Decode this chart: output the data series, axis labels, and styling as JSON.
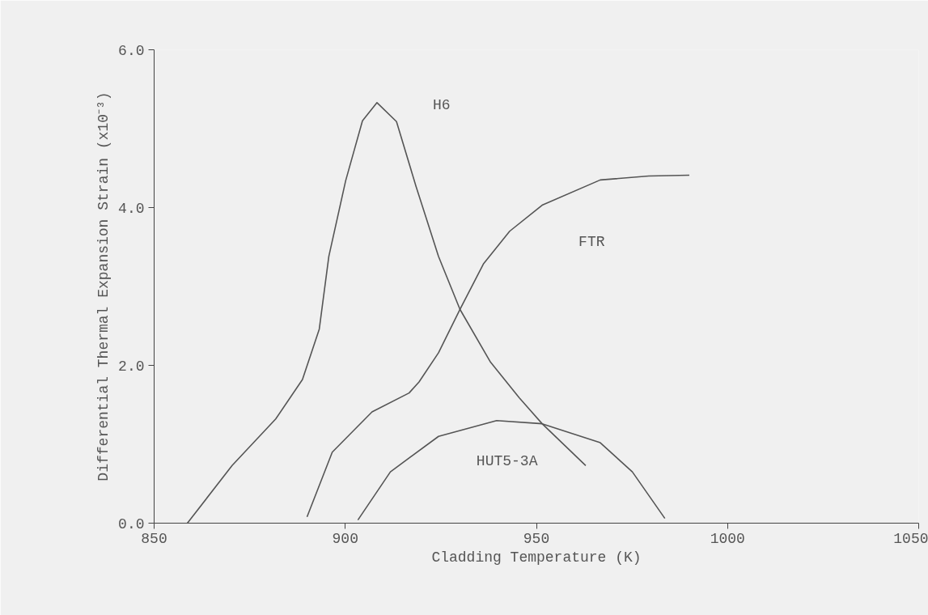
{
  "chart_data": {
    "type": "line",
    "xlabel": "Cladding Temperature (K)",
    "ylabel": "Differential Thermal Expansion Strain (x10⁻³)",
    "xlim": [
      850,
      1050
    ],
    "ylim": [
      0,
      6
    ],
    "xticks": [
      850,
      900,
      950,
      1000,
      1050
    ],
    "yticks": [
      {
        "value": 0,
        "label": "0.0"
      },
      {
        "value": 2,
        "label": "2.0"
      },
      {
        "value": 4,
        "label": "4.0"
      },
      {
        "value": 6,
        "label": "6.0"
      }
    ],
    "grid": false,
    "legend": false,
    "marker": "none",
    "line_style": "solid",
    "series": [
      {
        "name": "H6",
        "color": "#555555",
        "x": [
          858.7,
          870.4,
          881.8,
          888.8,
          893.2,
          895.7,
          900.1,
          904.5,
          908.3,
          913.4,
          918.5,
          924.4,
          930,
          938,
          945.5,
          951.5,
          962.9
        ],
        "values": [
          0,
          0.73,
          1.32,
          1.82,
          2.46,
          3.38,
          4.34,
          5.1,
          5.33,
          5.09,
          4.27,
          3.38,
          2.71,
          2.04,
          1.59,
          1.26,
          0.73
        ]
      },
      {
        "name": "FTR",
        "color": "#555555",
        "x": [
          890,
          896.6,
          907,
          916.7,
          919.3,
          924.4,
          930,
          936.2,
          943,
          951.5,
          966.7,
          979.4,
          990
        ],
        "values": [
          0.08,
          0.9,
          1.41,
          1.65,
          1.79,
          2.16,
          2.71,
          3.29,
          3.7,
          4.03,
          4.35,
          4.4,
          4.41
        ]
      },
      {
        "name": "HUT5-3A",
        "color": "#555555",
        "x": [
          903.3,
          911.8,
          924.4,
          939.6,
          951.5,
          966.7,
          975.1,
          983.6
        ],
        "values": [
          0.04,
          0.65,
          1.1,
          1.3,
          1.26,
          1.02,
          0.65,
          0.06
        ]
      }
    ]
  }
}
